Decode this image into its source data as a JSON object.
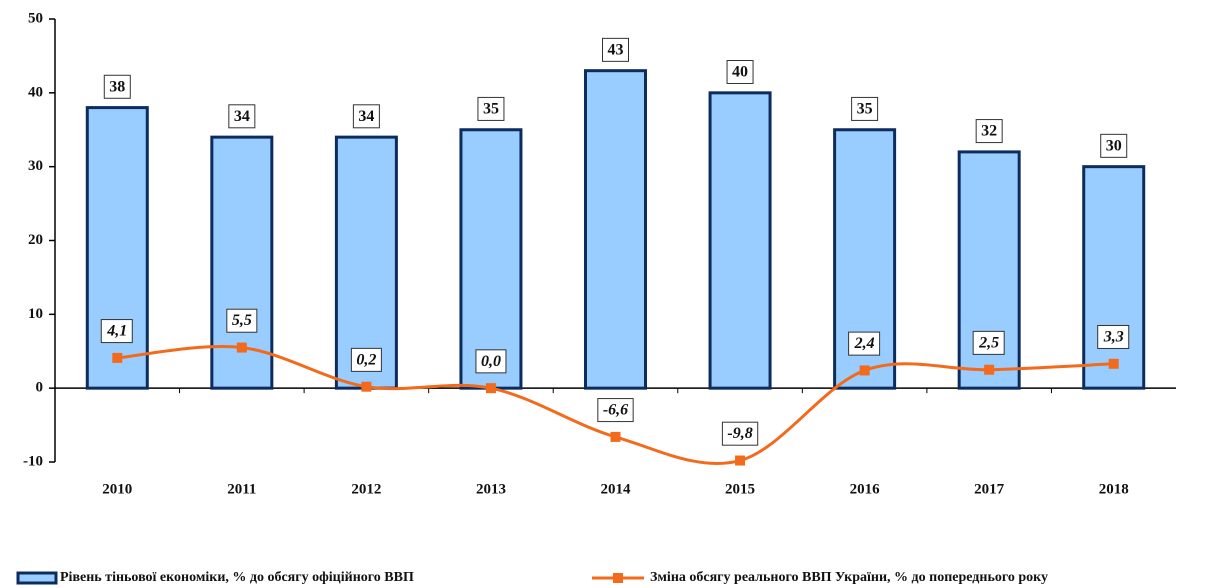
{
  "chart_data": {
    "type": "combo",
    "categories": [
      "2010",
      "2011",
      "2012",
      "2013",
      "2014",
      "2015",
      "2016",
      "2017",
      "2018"
    ],
    "series": [
      {
        "name": "Рівень тіньової економіки, % до обсягу офіційного ВВП",
        "type": "bar",
        "color": "#99ccff",
        "edge": "#0d2c5e",
        "values": [
          38,
          34,
          34,
          35,
          43,
          40,
          35,
          32,
          30
        ]
      },
      {
        "name": "Зміна обсягу реального ВВП України, % до попереднього року",
        "type": "line",
        "color": "#f26b1d",
        "values": [
          4.1,
          5.5,
          0.2,
          0.0,
          -6.6,
          -9.8,
          2.4,
          2.5,
          3.3
        ],
        "value_labels": [
          "4,1",
          "5,5",
          "0,2",
          "0,0",
          "-6,6",
          "-9,8",
          "2,4",
          "2,5",
          "3,3"
        ]
      }
    ],
    "ylim": [
      -10,
      50
    ],
    "yticks": [
      -10,
      0,
      10,
      20,
      30,
      40,
      50
    ],
    "grid": false,
    "legend": "bottom"
  }
}
